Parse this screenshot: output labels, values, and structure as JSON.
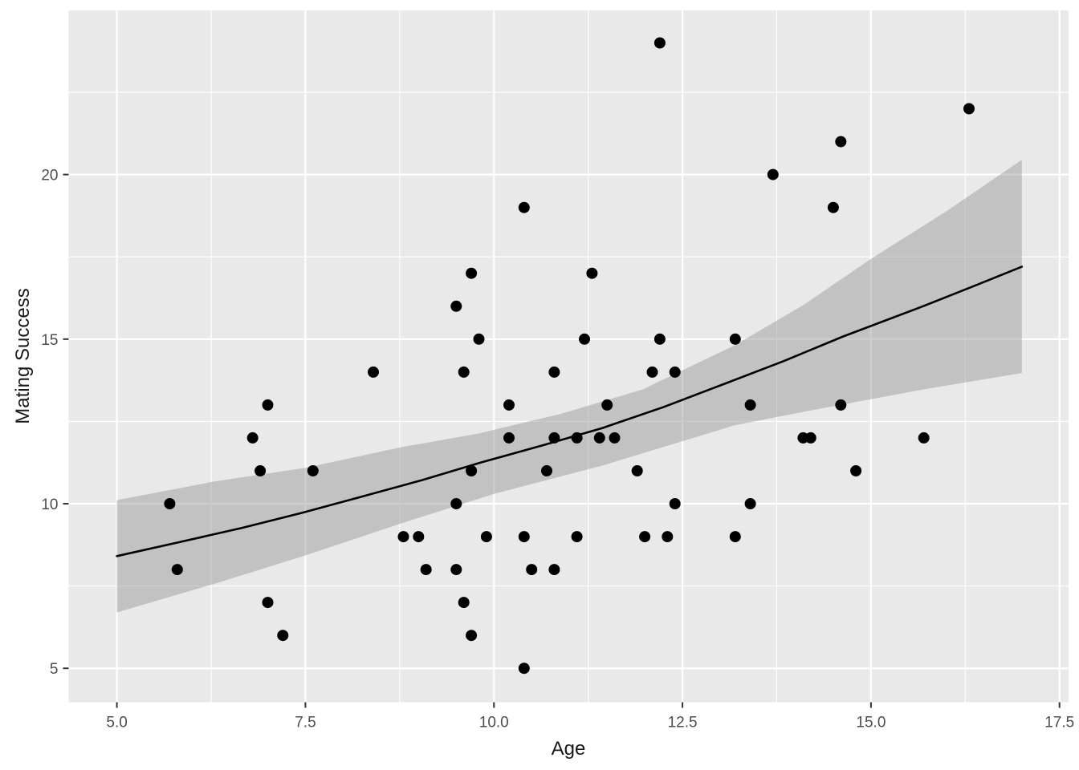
{
  "chart_data": {
    "type": "scatter",
    "title": "",
    "xlabel": "Age",
    "ylabel": "Mating Success",
    "legend": "none",
    "grid": "on",
    "xlim": [
      4.36,
      17.62
    ],
    "ylim": [
      3.97,
      25.01
    ],
    "x_tick_values": [
      5.0,
      7.5,
      10.0,
      12.5,
      15.0,
      17.5
    ],
    "x_tick_labels": [
      "5.0",
      "7.5",
      "10.0",
      "12.5",
      "15.0",
      "17.5"
    ],
    "y_tick_values": [
      5,
      10,
      15,
      20
    ],
    "y_tick_labels": [
      "5",
      "10",
      "15",
      "20"
    ],
    "x_minor_gridlines": [
      6.25,
      8.75,
      11.25,
      13.75,
      16.25
    ],
    "y_minor_gridlines": [
      7.5,
      12.5,
      17.5,
      22.5,
      25.0
    ],
    "points": [
      [
        12.2,
        24
      ],
      [
        16.3,
        22
      ],
      [
        14.6,
        21
      ],
      [
        13.7,
        20
      ],
      [
        10.4,
        19
      ],
      [
        14.5,
        19
      ],
      [
        9.7,
        17
      ],
      [
        11.3,
        17
      ],
      [
        9.5,
        16
      ],
      [
        9.8,
        15
      ],
      [
        11.2,
        15
      ],
      [
        12.2,
        15
      ],
      [
        13.2,
        15
      ],
      [
        8.4,
        14
      ],
      [
        9.6,
        14
      ],
      [
        10.8,
        14
      ],
      [
        12.1,
        14
      ],
      [
        12.4,
        14
      ],
      [
        7.0,
        13
      ],
      [
        10.2,
        13
      ],
      [
        11.5,
        13
      ],
      [
        13.4,
        13
      ],
      [
        14.6,
        13
      ],
      [
        6.8,
        12
      ],
      [
        10.2,
        12
      ],
      [
        10.8,
        12
      ],
      [
        11.1,
        12
      ],
      [
        11.4,
        12
      ],
      [
        11.6,
        12
      ],
      [
        14.1,
        12
      ],
      [
        14.2,
        12
      ],
      [
        15.7,
        12
      ],
      [
        6.9,
        11
      ],
      [
        7.6,
        11
      ],
      [
        9.7,
        11
      ],
      [
        10.7,
        11
      ],
      [
        11.9,
        11
      ],
      [
        14.8,
        11
      ],
      [
        5.7,
        10
      ],
      [
        9.5,
        10
      ],
      [
        12.4,
        10
      ],
      [
        13.4,
        10
      ],
      [
        8.8,
        9
      ],
      [
        9.0,
        9
      ],
      [
        9.9,
        9
      ],
      [
        10.4,
        9
      ],
      [
        11.1,
        9
      ],
      [
        12.0,
        9
      ],
      [
        12.3,
        9
      ],
      [
        13.2,
        9
      ],
      [
        5.8,
        8
      ],
      [
        9.1,
        8
      ],
      [
        9.5,
        8
      ],
      [
        10.5,
        8
      ],
      [
        10.8,
        8
      ],
      [
        7.0,
        7
      ],
      [
        9.6,
        7
      ],
      [
        7.2,
        6
      ],
      [
        9.7,
        6
      ],
      [
        10.4,
        5
      ]
    ],
    "smooth_line": [
      [
        5.0,
        8.41
      ],
      [
        5.8,
        8.82
      ],
      [
        6.65,
        9.26
      ],
      [
        7.45,
        9.72
      ],
      [
        8.24,
        10.21
      ],
      [
        9.05,
        10.72
      ],
      [
        9.84,
        11.26
      ],
      [
        10.64,
        11.77
      ],
      [
        11.44,
        12.3
      ],
      [
        12.24,
        12.93
      ],
      [
        13.03,
        13.62
      ],
      [
        13.84,
        14.33
      ],
      [
        14.63,
        15.08
      ],
      [
        15.69,
        16.0
      ],
      [
        16.35,
        16.6
      ],
      [
        17.0,
        17.2
      ]
    ],
    "ribbon_upper": [
      [
        5.0,
        10.11
      ],
      [
        6.28,
        10.67
      ],
      [
        7.5,
        11.09
      ],
      [
        8.78,
        11.72
      ],
      [
        9.79,
        12.13
      ],
      [
        10.9,
        12.74
      ],
      [
        11.97,
        13.47
      ],
      [
        13.19,
        14.81
      ],
      [
        14.1,
        16.03
      ],
      [
        15.0,
        17.44
      ],
      [
        16.01,
        18.9
      ],
      [
        17.0,
        20.45
      ]
    ],
    "ribbon_lower": [
      [
        5.0,
        6.7
      ],
      [
        6.28,
        7.56
      ],
      [
        7.5,
        8.43
      ],
      [
        8.78,
        9.41
      ],
      [
        10.02,
        10.31
      ],
      [
        11.44,
        11.16
      ],
      [
        13.19,
        12.38
      ],
      [
        14.1,
        12.79
      ],
      [
        15.69,
        13.47
      ],
      [
        17.0,
        13.97
      ]
    ],
    "colors": {
      "panel_bg": "#e9e9e9",
      "gridline": "#ffffff",
      "point": "#000000",
      "smooth_line": "#000000",
      "ribbon_fill": "#999999",
      "ribbon_opacity": 0.48,
      "tick_text": "#4d4d4d",
      "axis_title": "#1a1a1a",
      "tick_mark": "#333333"
    }
  }
}
